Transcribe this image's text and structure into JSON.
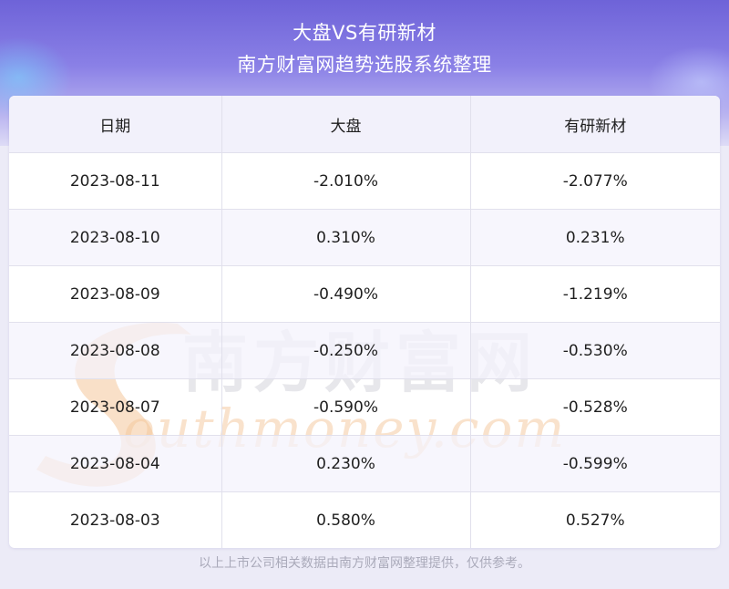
{
  "header": {
    "title": "大盘VS有研新材",
    "subtitle": "南方财富网趋势选股系统整理"
  },
  "table": {
    "columns": [
      "日期",
      "大盘",
      "有研新材"
    ],
    "rows": [
      [
        "2023-08-11",
        "-2.010%",
        "-2.077%"
      ],
      [
        "2023-08-10",
        "0.310%",
        "0.231%"
      ],
      [
        "2023-08-09",
        "-0.490%",
        "-1.219%"
      ],
      [
        "2023-08-08",
        "-0.250%",
        "-0.530%"
      ],
      [
        "2023-08-07",
        "-0.590%",
        "-0.528%"
      ],
      [
        "2023-08-04",
        "0.230%",
        "-0.599%"
      ],
      [
        "2023-08-03",
        "0.580%",
        "0.527%"
      ]
    ]
  },
  "watermark": {
    "cn": "南方财富网",
    "en": "outhmoney.com"
  },
  "footer": "以上上市公司相关数据由南方财富网整理提供，仅供参考。",
  "colors": {
    "header_top": "#6e63d8",
    "header_bottom": "#dedcf6",
    "page_bg": "#ecebf7",
    "header_row_bg": "#f2f1fb",
    "text": "#1f1f1f",
    "footer_text": "#aaaaba",
    "watermark_orange": "#f4c79a",
    "watermark_gray": "#d5d5dc"
  }
}
